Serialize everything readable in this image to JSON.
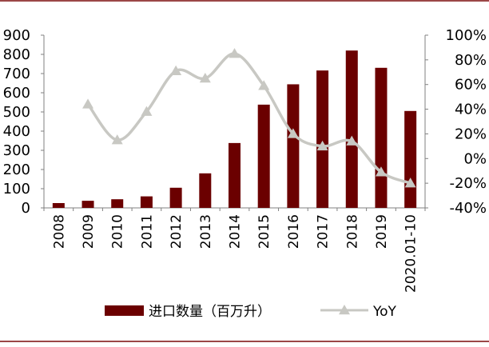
{
  "chart_data": {
    "type": "bar+line",
    "categories": [
      "2008",
      "2009",
      "2010",
      "2011",
      "2012",
      "2013",
      "2014",
      "2015",
      "2016",
      "2017",
      "2018",
      "2019",
      "2020.01-10"
    ],
    "series": [
      {
        "name": "进口数量（百万升）",
        "type": "bar",
        "axis": "left",
        "color": "#6b0000",
        "values": [
          25,
          37,
          45,
          60,
          105,
          180,
          338,
          538,
          644,
          716,
          820,
          730,
          505
        ]
      },
      {
        "name": "YoY",
        "type": "line",
        "axis": "right",
        "color": "#c8c8c3",
        "values": [
          null,
          44,
          15,
          38,
          71,
          65,
          85,
          59,
          20,
          10,
          14,
          -11,
          -20
        ]
      }
    ],
    "left_axis": {
      "ylim": [
        0,
        900
      ],
      "ticks": [
        0,
        100,
        200,
        300,
        400,
        500,
        600,
        700,
        800,
        900
      ],
      "tick_labels": [
        "0",
        "100",
        "200",
        "300",
        "400",
        "500",
        "600",
        "700",
        "800",
        "900"
      ]
    },
    "right_axis": {
      "ylim": [
        -40,
        100
      ],
      "ticks": [
        -40,
        -20,
        0,
        20,
        40,
        60,
        80,
        100
      ],
      "tick_labels": [
        "-40%",
        "-20%",
        "0%",
        "20%",
        "40%",
        "60%",
        "80%",
        "100%"
      ]
    },
    "legend": {
      "position": "bottom",
      "items": [
        "进口数量（百万升）",
        "YoY"
      ]
    },
    "grid": false,
    "colors": {
      "bar": "#6b0000",
      "line": "#c8c8c3",
      "frame": "#7a0a0a",
      "axis": "#808080"
    }
  }
}
